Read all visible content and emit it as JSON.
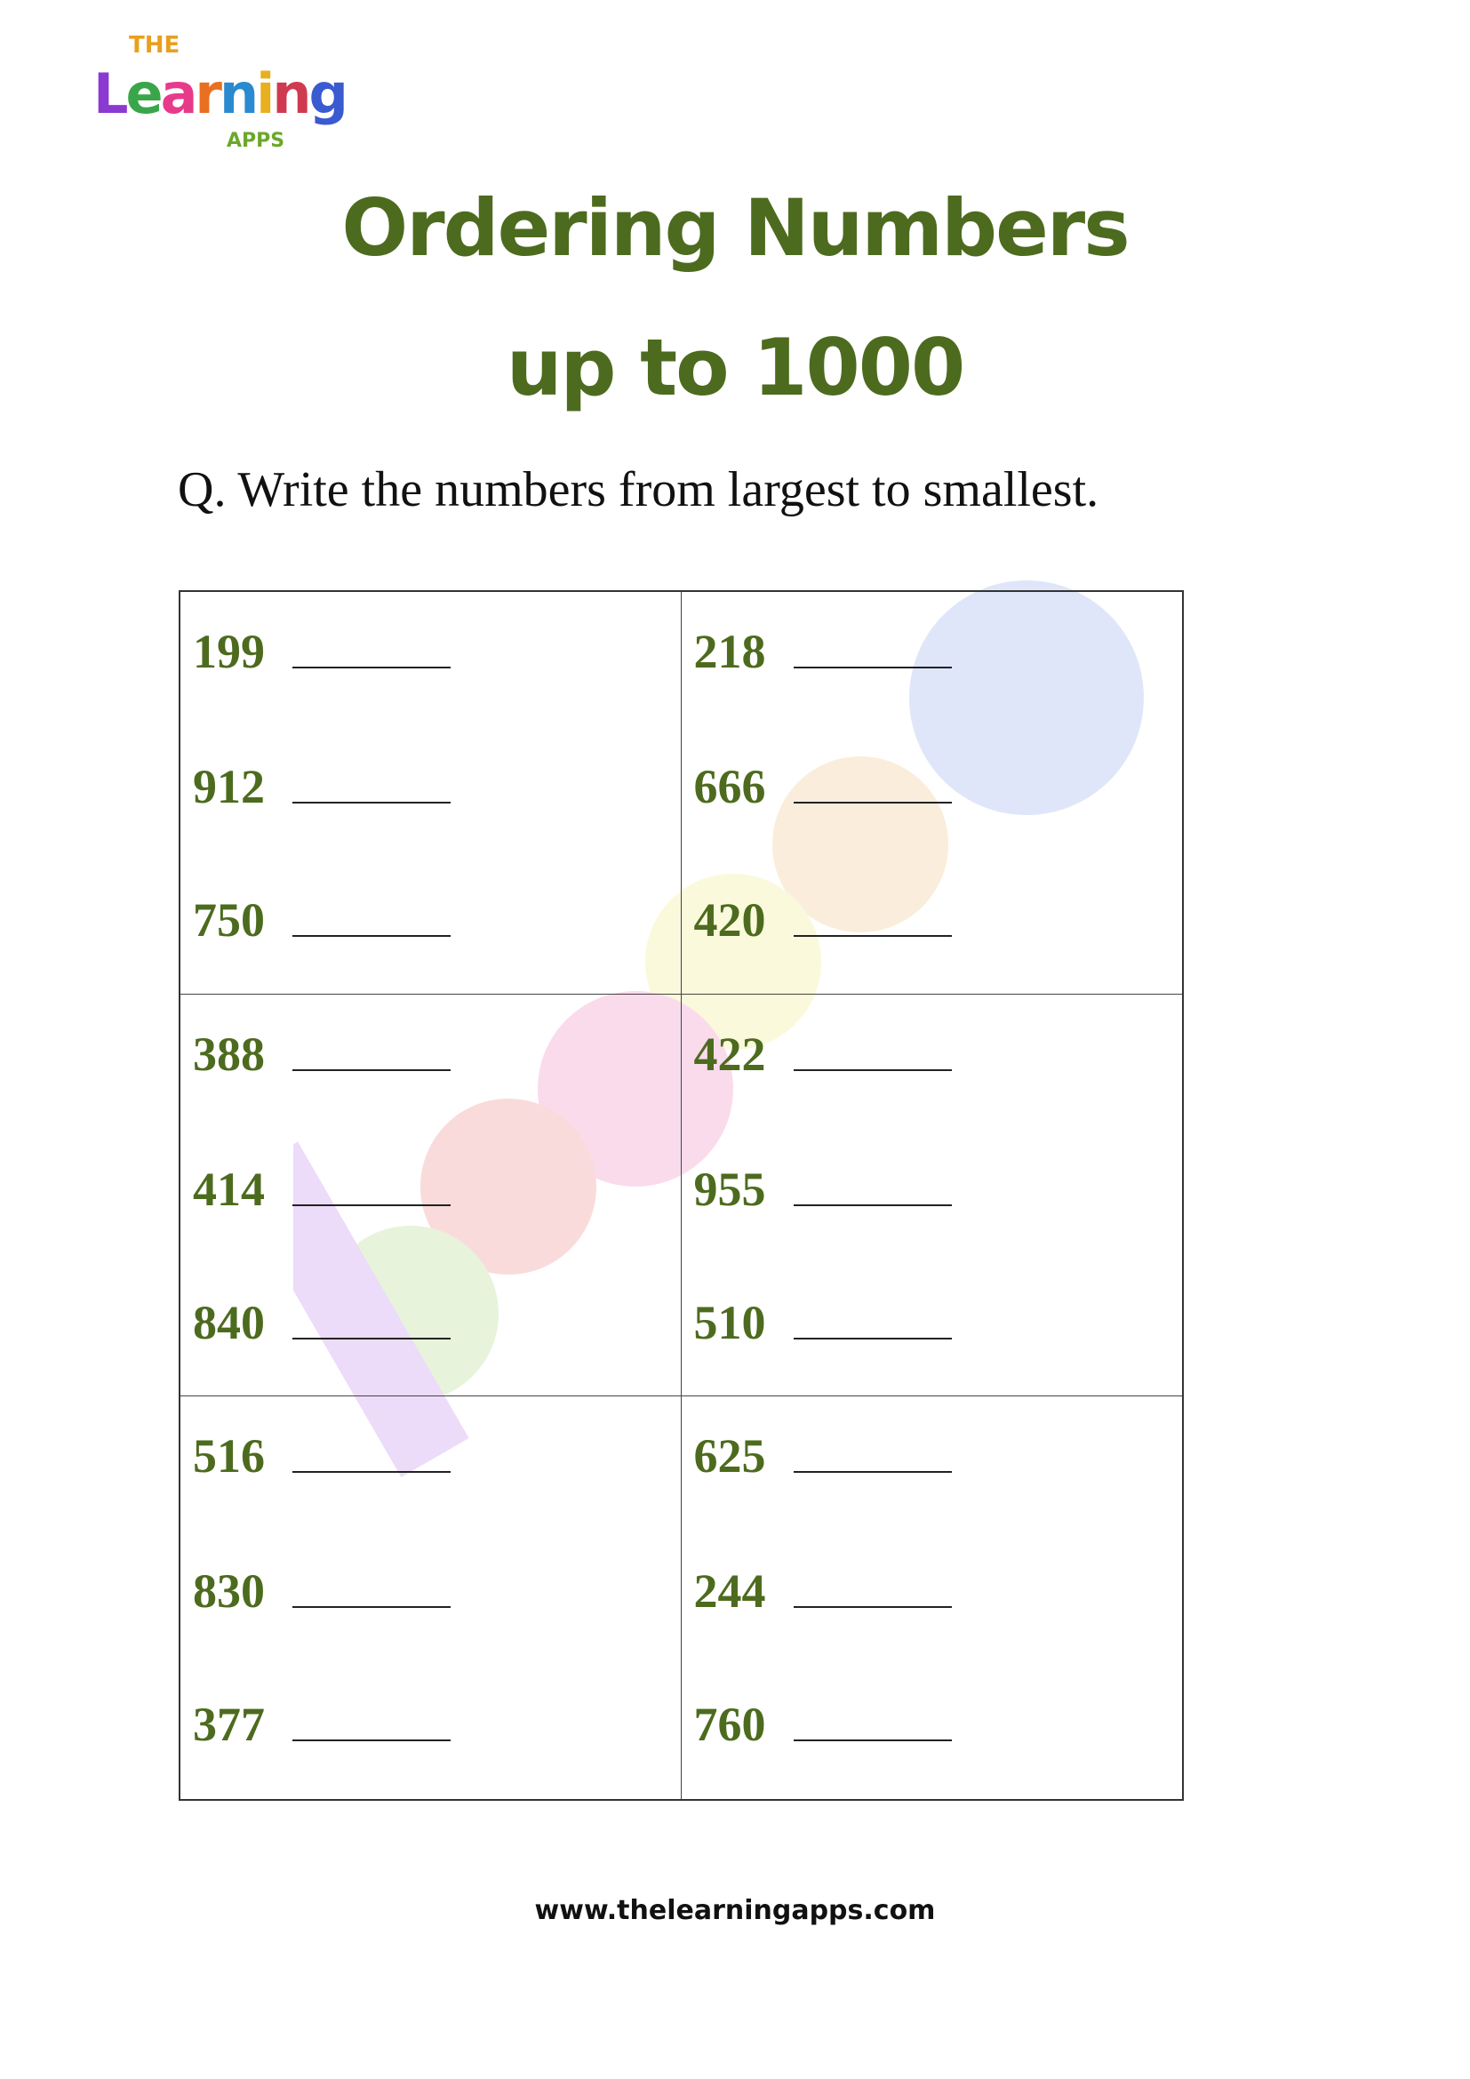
{
  "logo": {
    "top": "THE",
    "word": "Learning",
    "bottom": "APPS"
  },
  "title": {
    "line1": "Ordering Numbers",
    "line2": "up to 1000"
  },
  "question": "Q. Write the numbers from largest to smallest.",
  "groups": [
    [
      "199",
      "912",
      "750"
    ],
    [
      "218",
      "666",
      "420"
    ],
    [
      "388",
      "414",
      "840"
    ],
    [
      "422",
      "955",
      "510"
    ],
    [
      "516",
      "830",
      "377"
    ],
    [
      "625",
      "244",
      "760"
    ]
  ],
  "footer": "www.thelearningapps.com",
  "colors": {
    "title": "#4d6b1e",
    "numbers": "#4d6b1e"
  }
}
